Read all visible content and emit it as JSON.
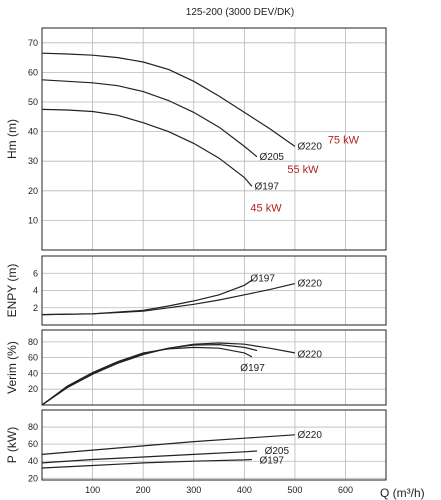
{
  "chart_data": {
    "title": "125-200 (3000 DEV/DK)",
    "xlabel": "Q (m³/h)",
    "x_ticks": [
      100,
      200,
      300,
      400,
      500,
      600
    ],
    "xlim": [
      0,
      680
    ],
    "panels": [
      {
        "id": "hm",
        "type": "line",
        "ylabel": "Hm (m)",
        "ylim": [
          0,
          75
        ],
        "y_ticks": [
          10,
          20,
          30,
          40,
          50,
          60,
          70
        ],
        "series": [
          {
            "name": "Ø220",
            "x": [
              0,
              50,
              100,
              150,
              200,
              250,
              300,
              350,
              400,
              450,
              500
            ],
            "y": [
              66.5,
              66.2,
              65.8,
              65,
              63.5,
              61,
              57,
              52,
              46.5,
              41,
              35
            ]
          },
          {
            "name": "Ø205",
            "x": [
              0,
              50,
              100,
              150,
              200,
              250,
              300,
              350,
              400,
              425
            ],
            "y": [
              57.5,
              57,
              56.5,
              55.5,
              53.5,
              50.5,
              46.5,
              41.5,
              35,
              31.5
            ]
          },
          {
            "name": "Ø197",
            "x": [
              0,
              50,
              100,
              150,
              200,
              250,
              300,
              350,
              400,
              415
            ],
            "y": [
              47.5,
              47.3,
              46.8,
              45.5,
              43,
              40,
              36,
              31,
              24.5,
              21.5
            ]
          }
        ],
        "annotations": [
          {
            "text": "Ø220",
            "x": 505,
            "y": 35
          },
          {
            "text": "Ø205",
            "x": 430,
            "y": 31.5
          },
          {
            "text": "Ø197",
            "x": 420,
            "y": 21.5
          },
          {
            "text": "75 kW",
            "x": 565,
            "y": 37
          },
          {
            "text": "55 kW",
            "x": 485,
            "y": 27
          },
          {
            "text": "45 kW",
            "x": 412,
            "y": 14
          }
        ]
      },
      {
        "id": "enpy",
        "type": "line",
        "ylabel": "ENPY (m)",
        "ylim": [
          0,
          8
        ],
        "y_ticks": [
          2,
          4,
          6
        ],
        "series": [
          {
            "name": "Ø220",
            "x": [
              0,
              100,
              200,
              250,
              300,
              350,
              400,
              450,
              500
            ],
            "y": [
              1.2,
              1.3,
              1.6,
              2.0,
              2.4,
              2.9,
              3.5,
              4.1,
              4.8
            ]
          },
          {
            "name": "Ø197",
            "x": [
              0,
              100,
              200,
              250,
              300,
              350,
              400,
              415
            ],
            "y": [
              1.2,
              1.3,
              1.7,
              2.2,
              2.8,
              3.5,
              4.6,
              5.2
            ]
          }
        ],
        "annotations": [
          {
            "text": "Ø197",
            "x": 412,
            "y": 5.4
          },
          {
            "text": "Ø220",
            "x": 505,
            "y": 4.8
          }
        ]
      },
      {
        "id": "verim",
        "type": "line",
        "ylabel": "Verim (%)",
        "ylim": [
          0,
          95
        ],
        "y_ticks": [
          20,
          40,
          60,
          80
        ],
        "series": [
          {
            "name": "Ø220",
            "x": [
              0,
              50,
              100,
              150,
              200,
              250,
              300,
              350,
              400,
              450,
              500
            ],
            "y": [
              0,
              22,
              39,
              53,
              64,
              72,
              77,
              78.5,
              77,
              72,
              66
            ]
          },
          {
            "name": "Ø205",
            "x": [
              0,
              50,
              100,
              150,
              200,
              250,
              300,
              350,
              400,
              425
            ],
            "y": [
              0,
              23,
              40,
              54,
              65,
              72,
              76,
              76.5,
              73,
              69
            ]
          },
          {
            "name": "Ø197",
            "x": [
              0,
              50,
              100,
              150,
              200,
              250,
              300,
              350,
              400,
              415
            ],
            "y": [
              0,
              24,
              41,
              55,
              66,
              71,
              73,
              72,
              66,
              61
            ]
          }
        ],
        "annotations": [
          {
            "text": "Ø220",
            "x": 505,
            "y": 64
          },
          {
            "text": "Ø197",
            "x": 392,
            "y": 47
          }
        ]
      },
      {
        "id": "power",
        "type": "line",
        "ylabel": "P (kW)",
        "ylim": [
          18,
          100
        ],
        "y_ticks": [
          20,
          40,
          60,
          80
        ],
        "series": [
          {
            "name": "Ø220",
            "x": [
              0,
              100,
              200,
              300,
              400,
              500
            ],
            "y": [
              48,
              53,
              58,
              63,
              67,
              71
            ]
          },
          {
            "name": "Ø205",
            "x": [
              0,
              100,
              200,
              300,
              400,
              425
            ],
            "y": [
              38,
              42,
              45,
              48,
              51,
              52
            ]
          },
          {
            "name": "Ø197",
            "x": [
              0,
              100,
              200,
              300,
              400,
              415
            ],
            "y": [
              32,
              35,
              38,
              40,
              41.5,
              42
            ]
          }
        ],
        "annotations": [
          {
            "text": "Ø220",
            "x": 505,
            "y": 71
          },
          {
            "text": "Ø205",
            "x": 440,
            "y": 52
          },
          {
            "text": "Ø197",
            "x": 430,
            "y": 41
          }
        ]
      }
    ]
  }
}
